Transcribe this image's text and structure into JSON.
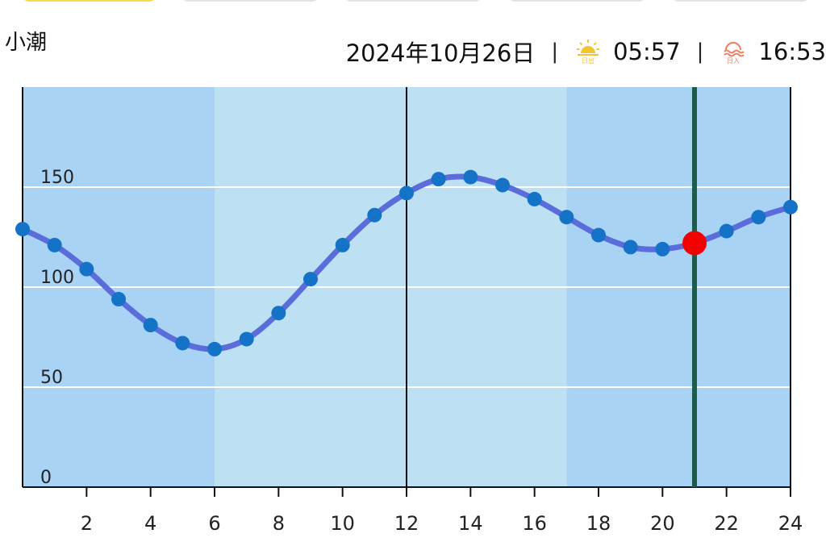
{
  "header": {
    "tide_name": "小潮",
    "date": "2024年10月26日",
    "separator": "|",
    "sunrise_icon": "sunrise-icon",
    "sunrise_time": "05:57",
    "sunset_icon": "sunset-icon",
    "sunset_time": "16:53",
    "sunrise_icon_label": "日出",
    "sunset_icon_label": "日入"
  },
  "colors": {
    "night_band": "#a9d3f5",
    "day_band": "#bde0f3",
    "tide_line": "#5a6ddb",
    "tide_point": "#1473c6",
    "current_marker": "#f40000",
    "now_line": "#1d5c4b",
    "sun_yellow": "#f2c633",
    "sunset_red": "#ec7f5f"
  },
  "chart_data": {
    "type": "line",
    "xlabel": "",
    "ylabel": "",
    "xlim": [
      0,
      24
    ],
    "ylim": [
      0,
      200
    ],
    "xticks": [
      2,
      4,
      6,
      8,
      10,
      12,
      14,
      16,
      18,
      20,
      22,
      24
    ],
    "yticks": [
      0,
      50,
      100,
      150
    ],
    "grid": "horizontal",
    "series": [
      {
        "x": [
          0,
          1,
          2,
          3,
          4,
          5,
          6,
          7,
          8,
          9,
          10,
          11,
          12,
          13,
          14,
          15,
          16,
          17,
          18,
          19,
          20,
          21,
          22,
          23,
          24
        ],
        "y": [
          129,
          121,
          109,
          94,
          81,
          72,
          69,
          74,
          87,
          104,
          121,
          136,
          147,
          154,
          155,
          151,
          144,
          135,
          126,
          120,
          119,
          122,
          128,
          135,
          140
        ]
      }
    ],
    "current_point": {
      "x": 21,
      "y": 122
    },
    "vertical_lines": [
      12,
      21
    ],
    "shaded_periods": [
      {
        "from": 0,
        "to": 6,
        "kind": "night"
      },
      {
        "from": 6,
        "to": 17,
        "kind": "day"
      },
      {
        "from": 17,
        "to": 24,
        "kind": "night"
      }
    ]
  }
}
